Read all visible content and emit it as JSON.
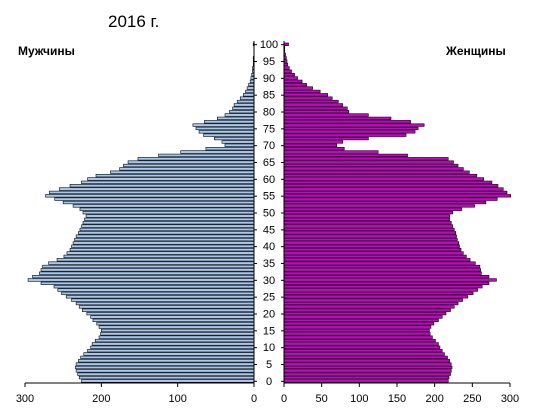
{
  "chart_data": {
    "type": "bar",
    "orientation": "horizontal",
    "layout": "population-pyramid",
    "title": "2016 г.",
    "ages": [
      0,
      1,
      2,
      3,
      4,
      5,
      6,
      7,
      8,
      9,
      10,
      11,
      12,
      13,
      14,
      15,
      16,
      17,
      18,
      19,
      20,
      21,
      22,
      23,
      24,
      25,
      26,
      27,
      28,
      29,
      30,
      31,
      32,
      33,
      34,
      35,
      36,
      37,
      38,
      39,
      40,
      41,
      42,
      43,
      44,
      45,
      46,
      47,
      48,
      49,
      50,
      51,
      52,
      53,
      54,
      55,
      56,
      57,
      58,
      59,
      60,
      61,
      62,
      63,
      64,
      65,
      66,
      67,
      68,
      69,
      70,
      71,
      72,
      73,
      74,
      75,
      76,
      77,
      78,
      79,
      80,
      81,
      82,
      83,
      84,
      85,
      86,
      87,
      88,
      89,
      90,
      91,
      92,
      93,
      94,
      95,
      96,
      97,
      98,
      99,
      100
    ],
    "age_ticks": [
      0,
      5,
      10,
      15,
      20,
      25,
      30,
      35,
      40,
      45,
      50,
      55,
      60,
      65,
      70,
      75,
      80,
      85,
      90,
      95,
      100
    ],
    "series": [
      {
        "name": "Мужчины",
        "color": "#a6c8ee",
        "values": [
          226,
          229,
          231,
          233,
          234,
          233,
          230,
          227,
          223,
          218,
          214,
          212,
          208,
          203,
          201,
          200,
          203,
          206,
          211,
          214,
          219,
          225,
          229,
          233,
          239,
          246,
          252,
          257,
          262,
          279,
          296,
          290,
          281,
          279,
          277,
          269,
          258,
          249,
          245,
          241,
          239,
          237,
          235,
          233,
          230,
          228,
          226,
          224,
          222,
          220,
          224,
          228,
          237,
          250,
          261,
          273,
          268,
          255,
          241,
          226,
          218,
          207,
          188,
          176,
          171,
          165,
          152,
          125,
          96,
          63,
          38,
          42,
          52,
          66,
          72,
          76,
          80,
          65,
          48,
          38,
          32,
          28,
          26,
          22,
          18,
          14,
          11,
          9,
          7,
          5,
          4,
          3,
          2,
          2,
          1,
          1,
          1,
          0,
          0,
          0,
          1
        ]
      },
      {
        "name": "Женщины",
        "color": "#cc00cc",
        "values": [
          218,
          219,
          221,
          222,
          223,
          222,
          220,
          217,
          213,
          210,
          207,
          205,
          201,
          197,
          194,
          193,
          195,
          199,
          205,
          210,
          215,
          221,
          226,
          231,
          237,
          244,
          251,
          257,
          263,
          272,
          282,
          272,
          262,
          261,
          260,
          254,
          247,
          242,
          238,
          235,
          233,
          232,
          230,
          229,
          228,
          226,
          224,
          222,
          220,
          220,
          224,
          236,
          253,
          268,
          283,
          301,
          296,
          291,
          284,
          276,
          265,
          256,
          246,
          238,
          231,
          225,
          218,
          164,
          125,
          80,
          70,
          78,
          112,
          162,
          174,
          178,
          186,
          168,
          142,
          112,
          86,
          84,
          78,
          72,
          64,
          58,
          48,
          38,
          30,
          24,
          18,
          14,
          10,
          7,
          5,
          4,
          3,
          2,
          1,
          1,
          6
        ]
      }
    ],
    "xlim": [
      0,
      300
    ],
    "x_ticks_left": [
      "300",
      "200",
      "100",
      "0"
    ],
    "x_ticks_right": [
      "0",
      "50",
      "100",
      "150",
      "200",
      "250",
      "300"
    ],
    "legend": "none",
    "grid": false
  }
}
